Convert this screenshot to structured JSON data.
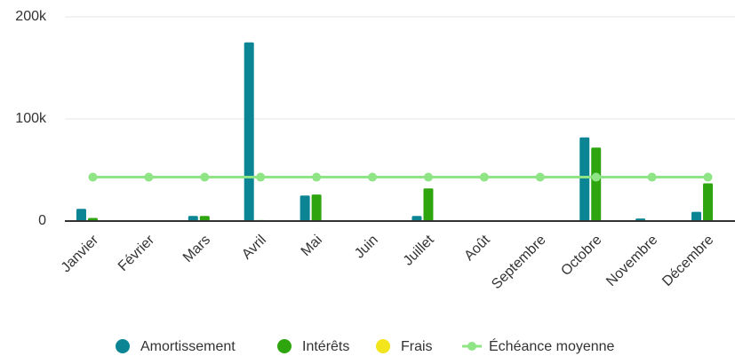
{
  "chart_data": {
    "type": "bar",
    "categories": [
      "Janvier",
      "Février",
      "Mars",
      "Avril",
      "Mai",
      "Juin",
      "Juillet",
      "Août",
      "Septembre",
      "Octobre",
      "Novembre",
      "Décembre"
    ],
    "series": [
      {
        "name": "Amortissement",
        "color": "#0b8594",
        "type": "bar",
        "values": [
          12000,
          500,
          5000,
          175000,
          25000,
          0,
          5000,
          0,
          0,
          82000,
          2500,
          9000
        ]
      },
      {
        "name": "Intérêts",
        "color": "#2ea50f",
        "type": "bar",
        "values": [
          3000,
          0,
          5000,
          1000,
          26000,
          0,
          32000,
          0,
          0,
          72000,
          0,
          37000
        ]
      },
      {
        "name": "Frais",
        "color": "#f2e51b",
        "type": "bar",
        "values": [
          0,
          0,
          0,
          0,
          0,
          0,
          0,
          0,
          0,
          0,
          0,
          0
        ]
      },
      {
        "name": "Échéance moyenne",
        "color": "#8fe486",
        "type": "line",
        "values": [
          43000,
          43000,
          43000,
          43000,
          43000,
          43000,
          43000,
          43000,
          43000,
          43000,
          43000,
          43000
        ]
      }
    ],
    "ylim": [
      0,
      200000
    ],
    "yticks": [
      0,
      {
        "value": 100000,
        "label": "100k"
      },
      {
        "value": 200000,
        "label": "200k"
      }
    ],
    "grid": true,
    "legend": "bottom"
  }
}
